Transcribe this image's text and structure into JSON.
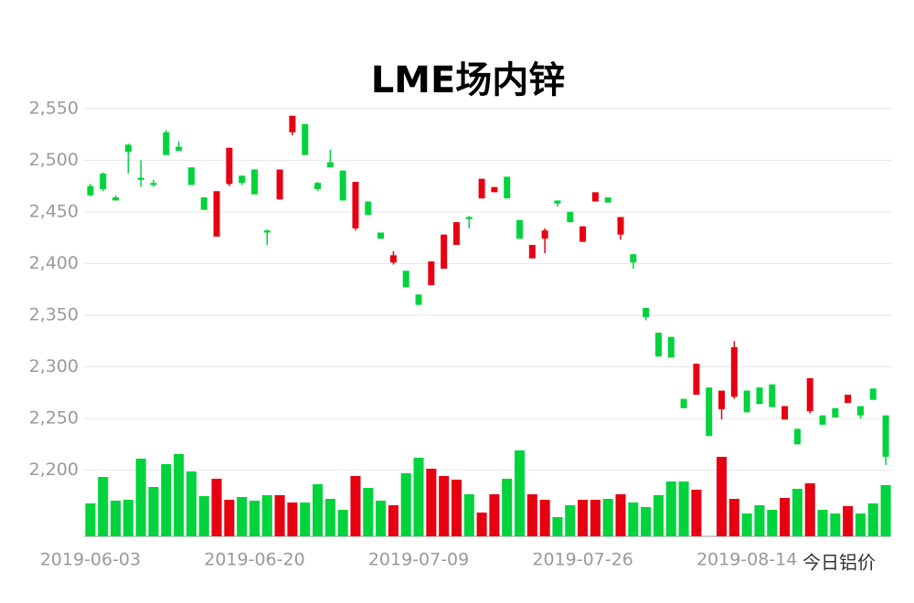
{
  "chart_data": {
    "type": "candlestick",
    "title": "LME场内锌",
    "watermark": "今日铝价",
    "categories": [
      "2019-06-03",
      null,
      null,
      null,
      null,
      null,
      null,
      null,
      null,
      null,
      null,
      null,
      null,
      "2019-06-20",
      null,
      null,
      null,
      null,
      null,
      null,
      null,
      null,
      null,
      null,
      null,
      null,
      "2019-07-09",
      null,
      null,
      null,
      null,
      null,
      null,
      null,
      null,
      null,
      null,
      null,
      null,
      "2019-07-26",
      null,
      null,
      null,
      null,
      null,
      null,
      null,
      null,
      null,
      null,
      null,
      null,
      "2019-08-14",
      null,
      null,
      null,
      null,
      null,
      null,
      null,
      null,
      null,
      null,
      null
    ],
    "open": [
      2475,
      2487,
      2464,
      2515,
      2483,
      2478,
      2527,
      2513,
      2493,
      2464,
      2426,
      2477,
      2485,
      2491,
      2432,
      2462,
      2527,
      2535,
      2478,
      2498,
      2490,
      2434,
      2460,
      2430,
      2401,
      2393,
      2370,
      2379,
      2395,
      2418,
      2445,
      2463,
      2469,
      2484,
      2442,
      2405,
      2424,
      2461,
      2450,
      2421,
      2460,
      2464,
      2428,
      2409,
      2357,
      2333,
      2329,
      2269,
      2273,
      2280,
      2259,
      2271,
      2277,
      2280,
      2283,
      2249,
      2240,
      2257,
      2253,
      2260,
      2265,
      2262,
      2279,
      2253
    ],
    "high": [
      2477,
      2488,
      2466,
      2516,
      2500,
      2481,
      2529,
      2518,
      2493,
      2464,
      2470,
      2512,
      2485,
      2491,
      2433,
      2491,
      2543,
      2535,
      2479,
      2510,
      2490,
      2479,
      2460,
      2430,
      2412,
      2393,
      2370,
      2402,
      2428,
      2440,
      2446,
      2482,
      2474,
      2484,
      2442,
      2418,
      2434,
      2461,
      2450,
      2436,
      2469,
      2464,
      2445,
      2409,
      2357,
      2333,
      2329,
      2269,
      2303,
      2280,
      2277,
      2325,
      2277,
      2280,
      2283,
      2262,
      2240,
      2289,
      2253,
      2260,
      2273,
      2262,
      2279,
      2253
    ],
    "low": [
      2465,
      2470,
      2461,
      2487,
      2474,
      2474,
      2505,
      2509,
      2476,
      2452,
      2426,
      2475,
      2476,
      2467,
      2418,
      2462,
      2524,
      2505,
      2470,
      2493,
      2461,
      2432,
      2447,
      2424,
      2399,
      2377,
      2360,
      2379,
      2395,
      2418,
      2434,
      2463,
      2469,
      2463,
      2424,
      2405,
      2410,
      2455,
      2440,
      2421,
      2460,
      2459,
      2423,
      2395,
      2345,
      2310,
      2309,
      2260,
      2273,
      2233,
      2249,
      2269,
      2256,
      2264,
      2261,
      2249,
      2225,
      2255,
      2244,
      2251,
      2265,
      2250,
      2268,
      2205
    ],
    "close": [
      2466,
      2472,
      2461,
      2508,
      2481,
      2476,
      2505,
      2509,
      2476,
      2452,
      2470,
      2512,
      2478,
      2467,
      2430,
      2491,
      2543,
      2505,
      2472,
      2493,
      2461,
      2479,
      2447,
      2424,
      2408,
      2377,
      2360,
      2402,
      2428,
      2440,
      2443,
      2482,
      2474,
      2463,
      2424,
      2418,
      2432,
      2458,
      2440,
      2436,
      2469,
      2459,
      2445,
      2401,
      2348,
      2310,
      2309,
      2260,
      2303,
      2233,
      2277,
      2319,
      2256,
      2264,
      2261,
      2262,
      2225,
      2289,
      2244,
      2251,
      2273,
      2253,
      2268,
      2213
    ],
    "volume": [
      36,
      65,
      39,
      40,
      85,
      54,
      79,
      90,
      71,
      44,
      63,
      40,
      43,
      39,
      45,
      45,
      37,
      37,
      57,
      41,
      29,
      66,
      53,
      39,
      34,
      69,
      86,
      74,
      66,
      62,
      46,
      26,
      46,
      63,
      94,
      46,
      40,
      21,
      34,
      40,
      40,
      41,
      46,
      37,
      32,
      45,
      60,
      60,
      51,
      null,
      87,
      41,
      25,
      34,
      29,
      42,
      52,
      58,
      29,
      25,
      33,
      25,
      36,
      56
    ],
    "up_color": "#e60012",
    "down_color": "#00d33c",
    "ylim": [
      2136,
      2556
    ],
    "yticks": [
      {
        "value": 2200,
        "label": "2,200"
      },
      {
        "value": 2250,
        "label": "2,250"
      },
      {
        "value": 2300,
        "label": "2,300"
      },
      {
        "value": 2350,
        "label": "2,350"
      },
      {
        "value": 2400,
        "label": "2,400"
      },
      {
        "value": 2450,
        "label": "2,450"
      },
      {
        "value": 2500,
        "label": "2,500"
      },
      {
        "value": 2550,
        "label": "2,550"
      }
    ],
    "grid": true
  }
}
